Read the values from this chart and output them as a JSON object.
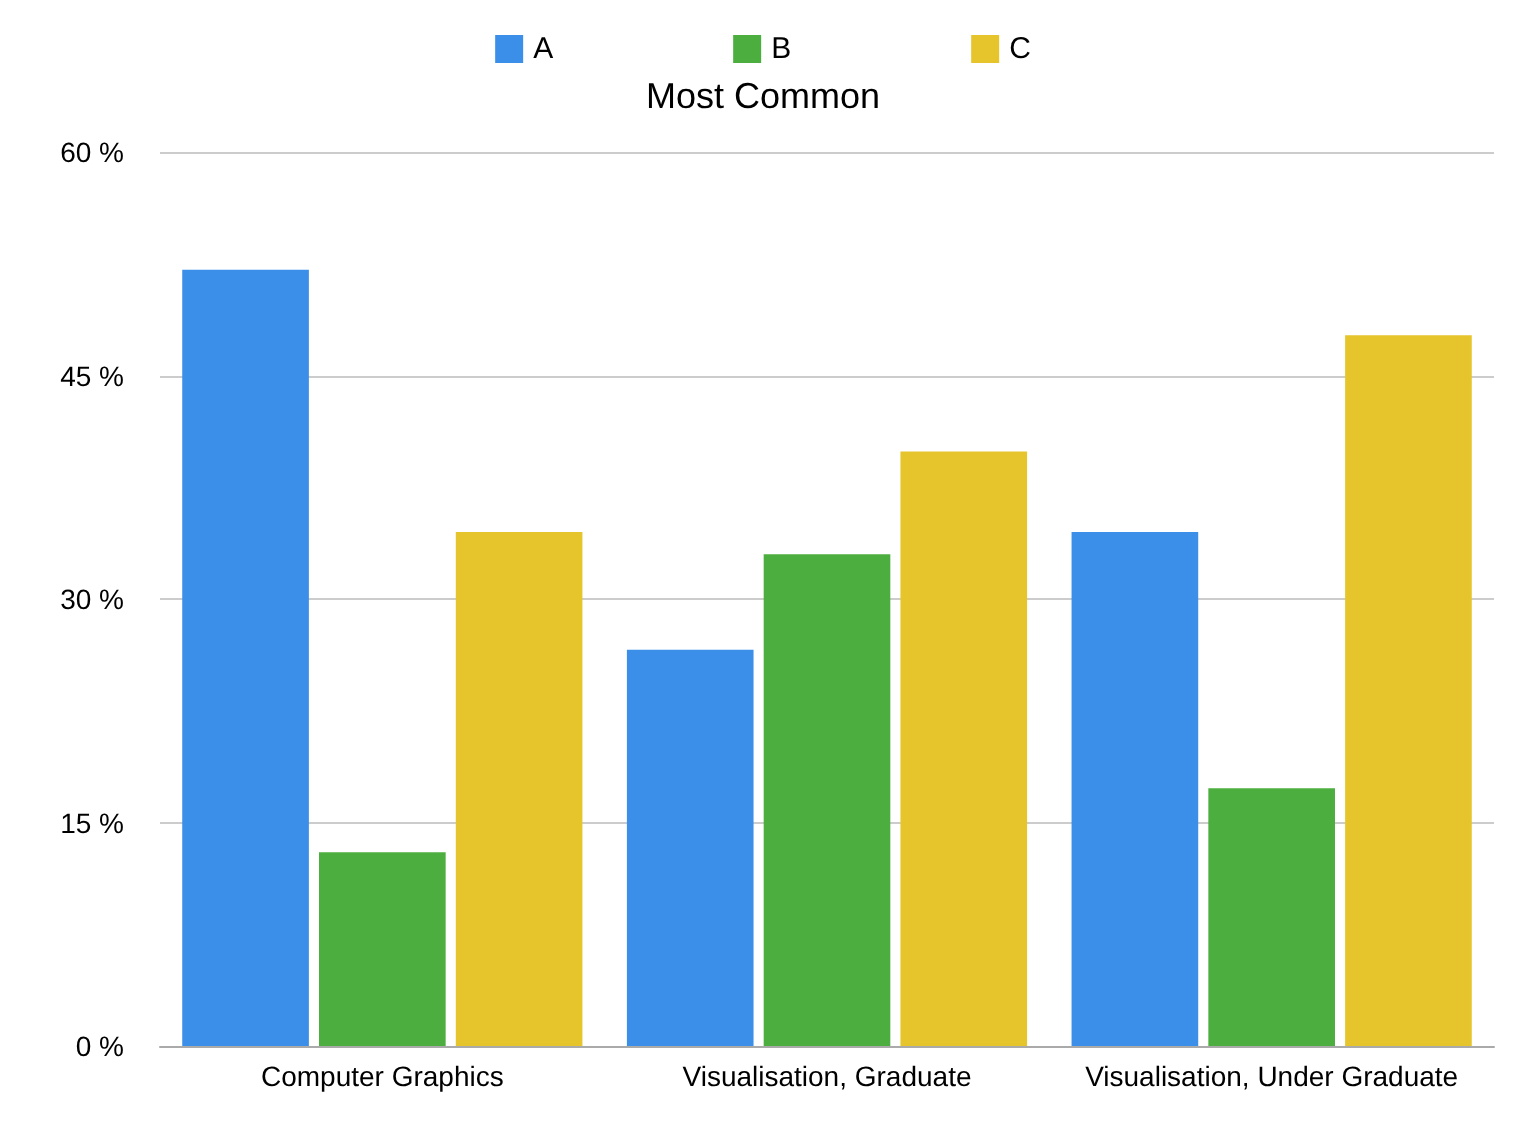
{
  "chart_data": {
    "type": "bar",
    "title": "Most Common",
    "categories": [
      "Computer Graphics",
      "Visualisation, Graduate",
      "Visualisation, Under Graduate"
    ],
    "series": [
      {
        "name": "A",
        "color": "#3b8fe8",
        "values": [
          52.1,
          26.6,
          34.5
        ]
      },
      {
        "name": "B",
        "color": "#4cae3e",
        "values": [
          13,
          33,
          17.3
        ]
      },
      {
        "name": "C",
        "color": "#e6c52c",
        "values": [
          34.5,
          39.9,
          47.7
        ]
      }
    ],
    "ylim": [
      0,
      60
    ],
    "yticks": [
      {
        "value": 0,
        "label": "0 %"
      },
      {
        "value": 15,
        "label": "15 %"
      },
      {
        "value": 30,
        "label": "30 %"
      },
      {
        "value": 45,
        "label": "45 %"
      },
      {
        "value": 60,
        "label": "60 %"
      }
    ],
    "grid": "y",
    "legend": "top"
  }
}
